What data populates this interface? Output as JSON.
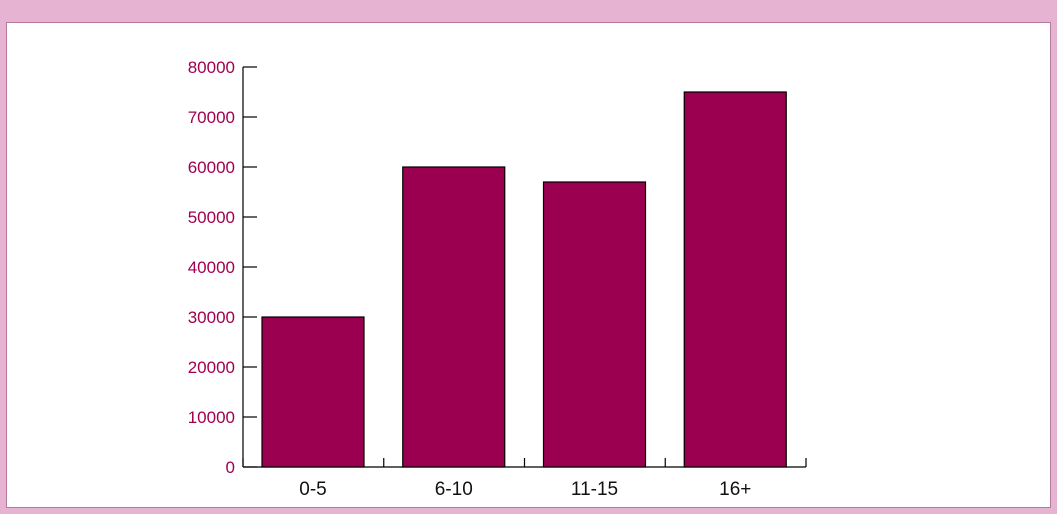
{
  "chart_data": {
    "type": "bar",
    "title": "",
    "xlabel": "",
    "ylabel": "",
    "categories": [
      "0-5",
      "6-10",
      "11-15",
      "16+"
    ],
    "values": [
      30000,
      60000,
      57000,
      75000
    ],
    "ylim": [
      0,
      80000
    ],
    "yticks": [
      "0",
      "10000",
      "20000",
      "30000",
      "40000",
      "50000",
      "60000",
      "70000",
      "80000"
    ],
    "grid": false,
    "legend": "none",
    "colors": {
      "bar_fill": "#9b0050",
      "bar_stroke": "#000000",
      "ytick_label": "#a0004f",
      "axis": "#000000"
    }
  }
}
